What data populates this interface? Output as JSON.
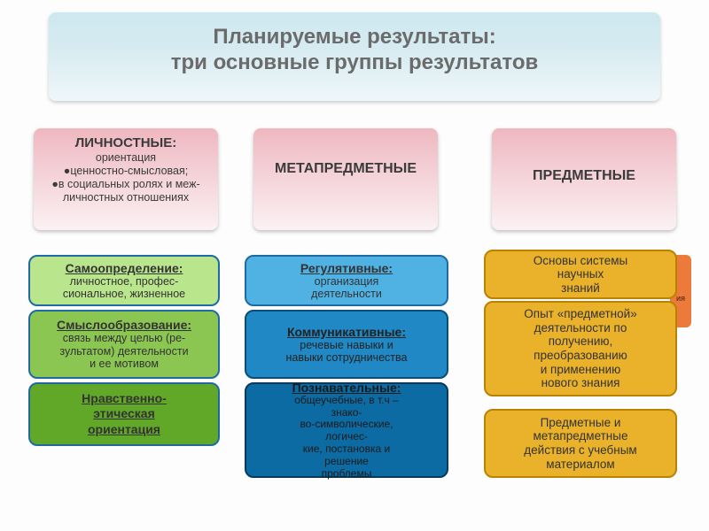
{
  "title": {
    "line1": "Планируемые результаты:",
    "line2": "три основные группы результатов"
  },
  "categories": {
    "c1": {
      "heading": "ЛИЧНОСТНЫЕ:",
      "body": "ориентация\n●ценностно-смысловая;\n●в социальных ролях и меж-\nличностных отношениях"
    },
    "c2": {
      "heading": "МЕТАПРЕДМЕТНЫЕ"
    },
    "c3": {
      "heading": "ПРЕДМЕТНЫЕ"
    }
  },
  "col1": {
    "b1": {
      "title": "Самоопределение:",
      "body": "личностное, профес-\nсиональное, жизненное"
    },
    "b2": {
      "title": "Смыслообразование:",
      "body": "связь между целью (ре-\nзультатом) деятельности\nи ее мотивом"
    },
    "b3": {
      "title": "Нравственно-\nэтическая\nориентация"
    }
  },
  "col2": {
    "b1": {
      "title": "Регулятивные:",
      "body": "организация\nдеятельности"
    },
    "b2": {
      "title": "Коммуникативные:",
      "body": "речевые навыки и\nнавыки сотрудничества"
    },
    "b3": {
      "title": "Познавательные:",
      "body": "общеучебные, в т.ч –\nзнако-\nво-символические,\nлогичес-\nкие, постановка и\nрешение\nпроблемы"
    }
  },
  "col3": {
    "b1": {
      "body": "Основы системы\nнаучных\nзнаний"
    },
    "peek": "ия",
    "b2": {
      "body": "Опыт «предметной»\nдеятельности по\nполучению,\nпреобразованию\nи применению\nнового знания"
    },
    "b3": {
      "body": "Предметные и\nметапредметные\nдействия с учебным\nматериалом"
    }
  },
  "colors": {
    "title_bg_top": "#cde8f0",
    "pink_top": "#efb7c0",
    "green_l": "#b9e58c",
    "green_m": "#8bc653",
    "green_d": "#61a728",
    "blue_l": "#4fb2e3",
    "blue_m": "#2089c5",
    "blue_d": "#0d6ba3",
    "gold": "#eab22b",
    "orange": "#ec7a3a"
  }
}
